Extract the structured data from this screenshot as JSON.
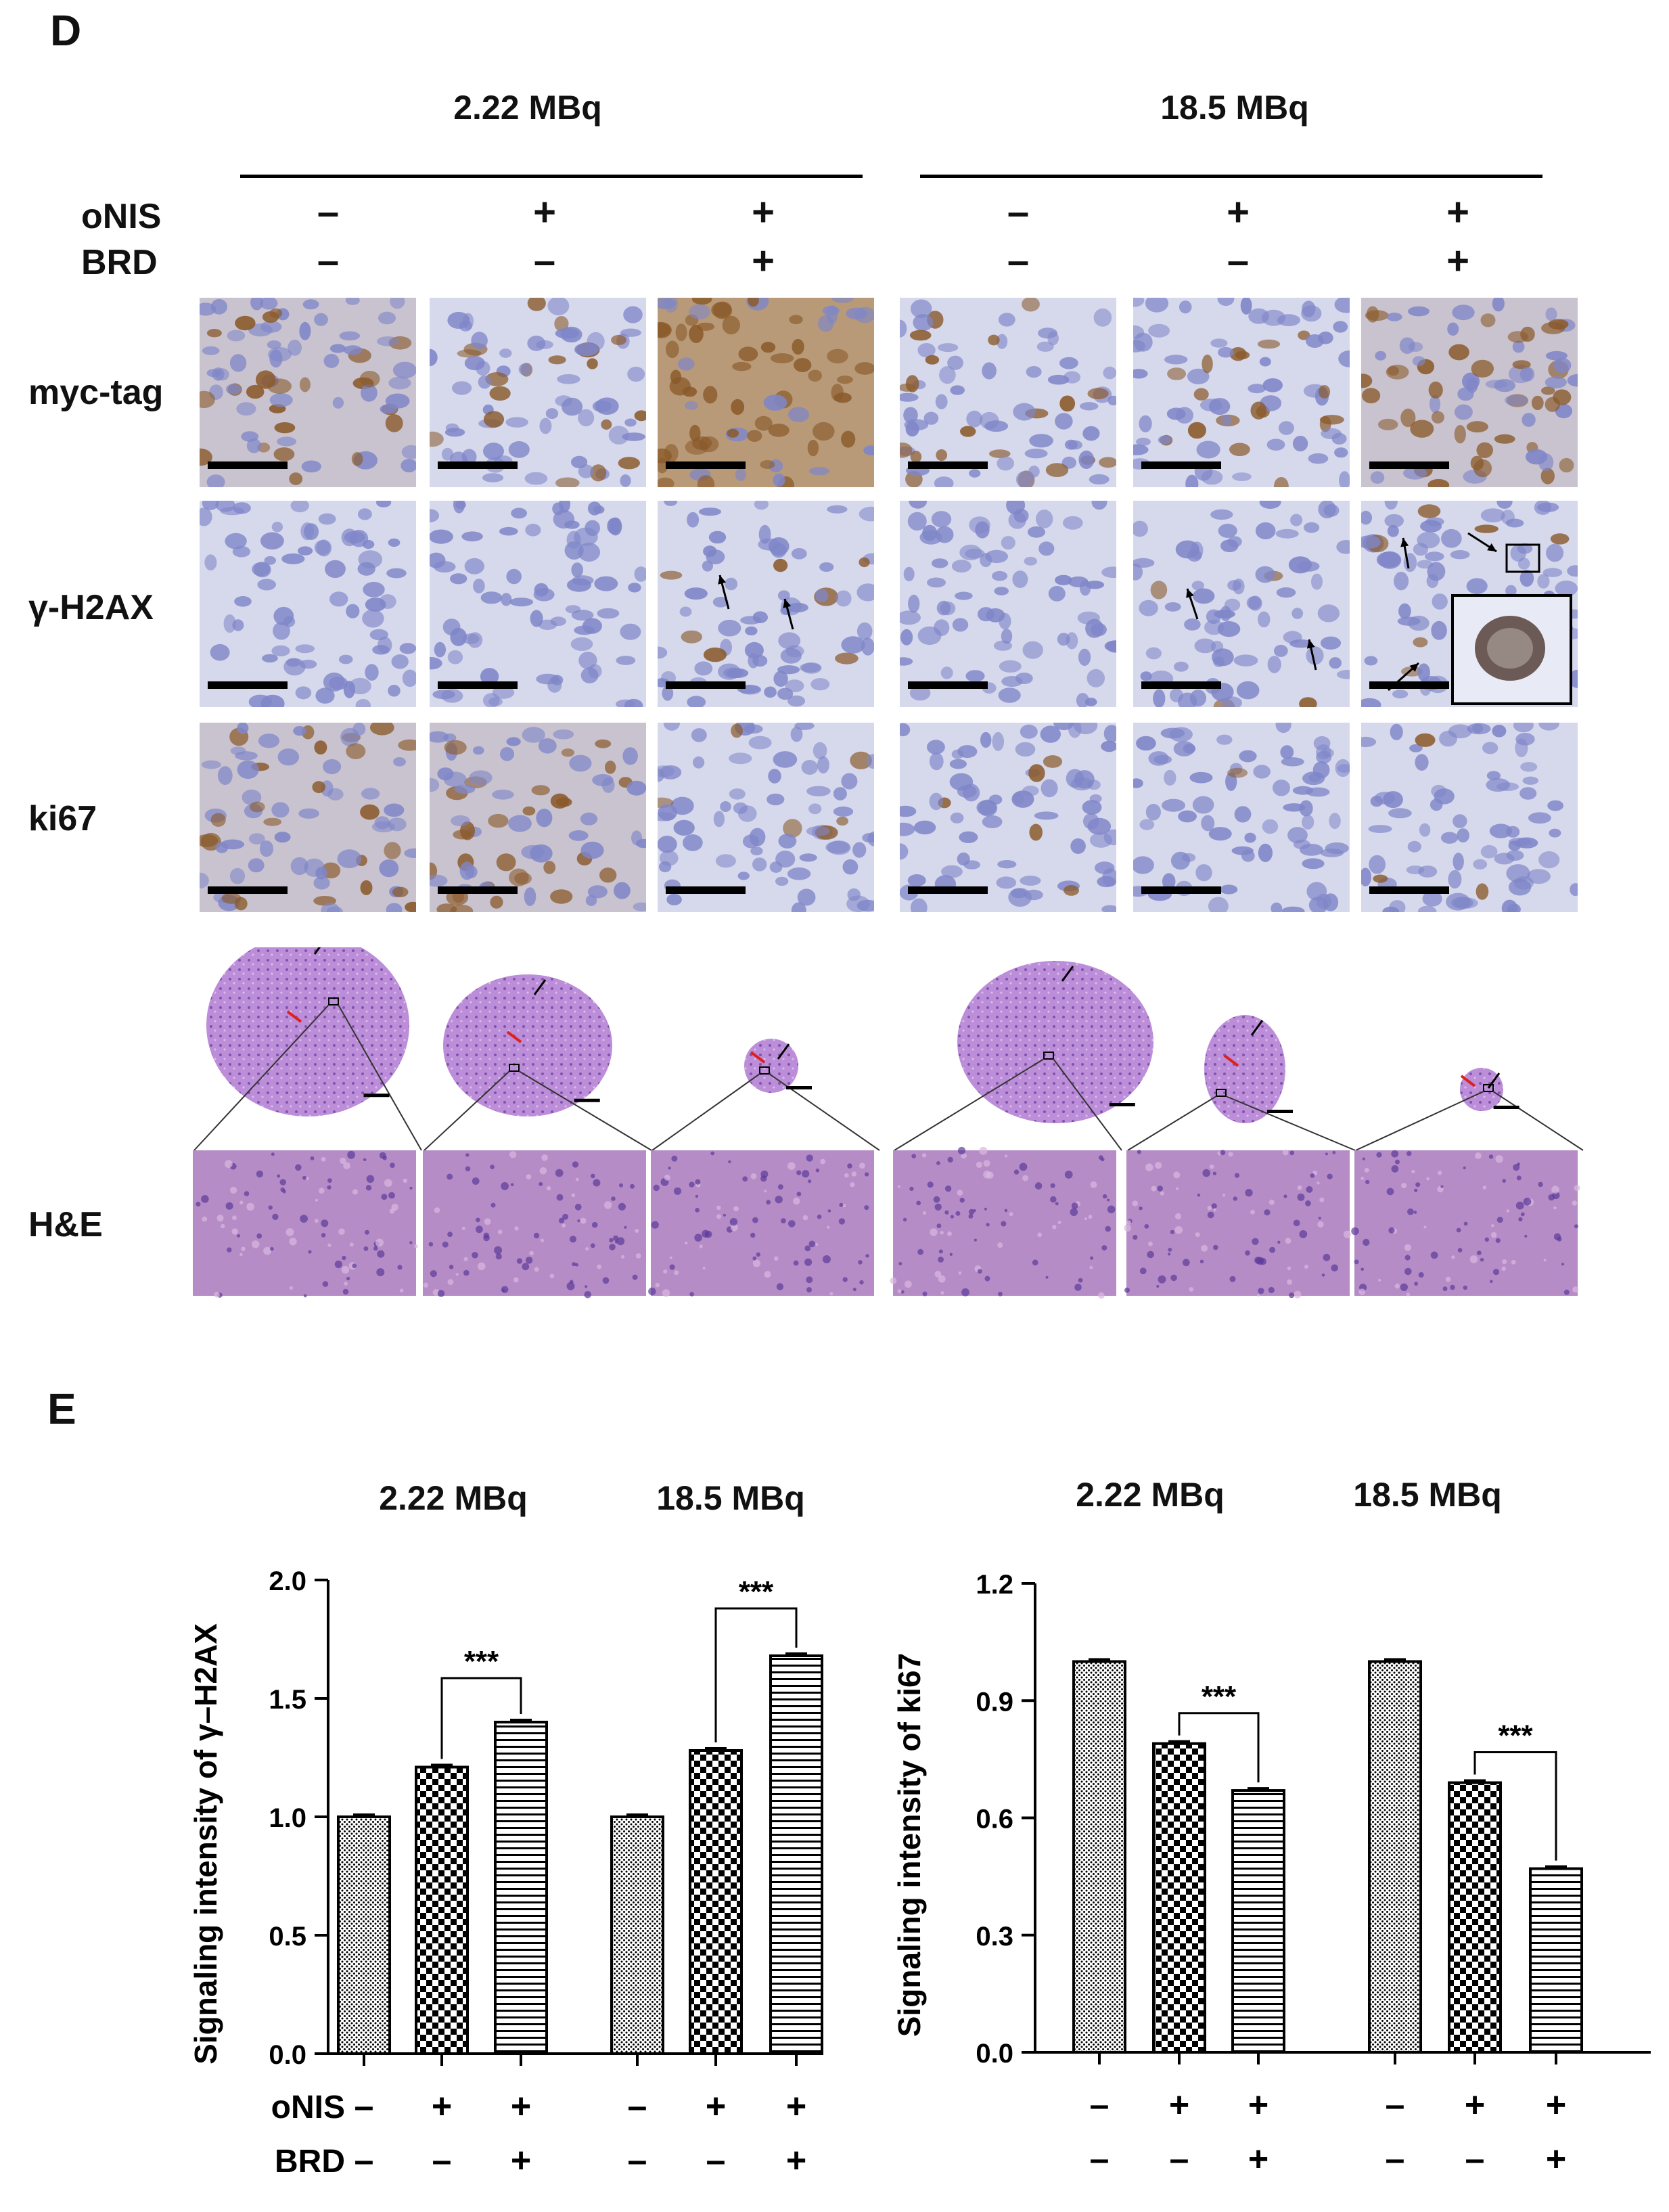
{
  "panel_d": {
    "letter": "D",
    "dose_groups": [
      "2.22 MBq",
      "18.5 MBq"
    ],
    "factor_labels": [
      "oNIS",
      "BRD"
    ],
    "onis_signs": [
      "–",
      "+",
      "+",
      "–",
      "+",
      "+"
    ],
    "brd_signs": [
      "–",
      "–",
      "+",
      "–",
      "–",
      "+"
    ],
    "row_labels": [
      "myc-tag",
      "γ-H2AX",
      "ki67",
      "H&E"
    ]
  },
  "panel_e": {
    "letter": "E",
    "dose_groups": [
      "2.22 MBq",
      "18.5 MBq"
    ],
    "factor_labels": [
      "oNIS",
      "BRD"
    ],
    "onis_signs": [
      "–",
      "+",
      "+",
      "–",
      "+",
      "+"
    ],
    "brd_signs": [
      "–",
      "–",
      "+",
      "–",
      "–",
      "+"
    ]
  },
  "colors": {
    "bar_outline": "#000000",
    "stain_blue": "#8a90d0",
    "stain_brown": "#8a5a2a",
    "he_purple": "#8a5cb8"
  },
  "chart_data": [
    {
      "type": "bar",
      "title": "",
      "ylabel": "Signaling intensity of γ–H2AX",
      "ylim": [
        0,
        2.0
      ],
      "yticks": [
        "0.0",
        "0.5",
        "1.0",
        "1.5",
        "2.0"
      ],
      "group_labels": [
        "2.22 MBq",
        "18.5 MBq"
      ],
      "categories": [
        "– / –",
        "+ / –",
        "+ / +",
        "– / –",
        "+ / –",
        "+ / +"
      ],
      "values": [
        1.0,
        1.21,
        1.4,
        1.0,
        1.28,
        1.68
      ],
      "patterns": [
        "dots",
        "checker",
        "stripes",
        "dots",
        "checker",
        "stripes"
      ],
      "significance": [
        {
          "from": 1,
          "to": 2,
          "label": "***"
        },
        {
          "from": 4,
          "to": 5,
          "label": "***"
        }
      ]
    },
    {
      "type": "bar",
      "title": "",
      "ylabel": "Signaling intensity of ki67",
      "ylim": [
        0,
        1.2
      ],
      "yticks": [
        "0.0",
        "0.3",
        "0.6",
        "0.9",
        "1.2"
      ],
      "group_labels": [
        "2.22 MBq",
        "18.5 MBq"
      ],
      "categories": [
        "– / –",
        "+ / –",
        "+ / +",
        "– / –",
        "+ / –",
        "+ / +"
      ],
      "values": [
        1.0,
        0.79,
        0.67,
        1.0,
        0.69,
        0.47
      ],
      "patterns": [
        "dots",
        "checker",
        "stripes",
        "dots",
        "checker",
        "stripes"
      ],
      "significance": [
        {
          "from": 1,
          "to": 2,
          "label": "***"
        },
        {
          "from": 4,
          "to": 5,
          "label": "***"
        }
      ]
    }
  ]
}
